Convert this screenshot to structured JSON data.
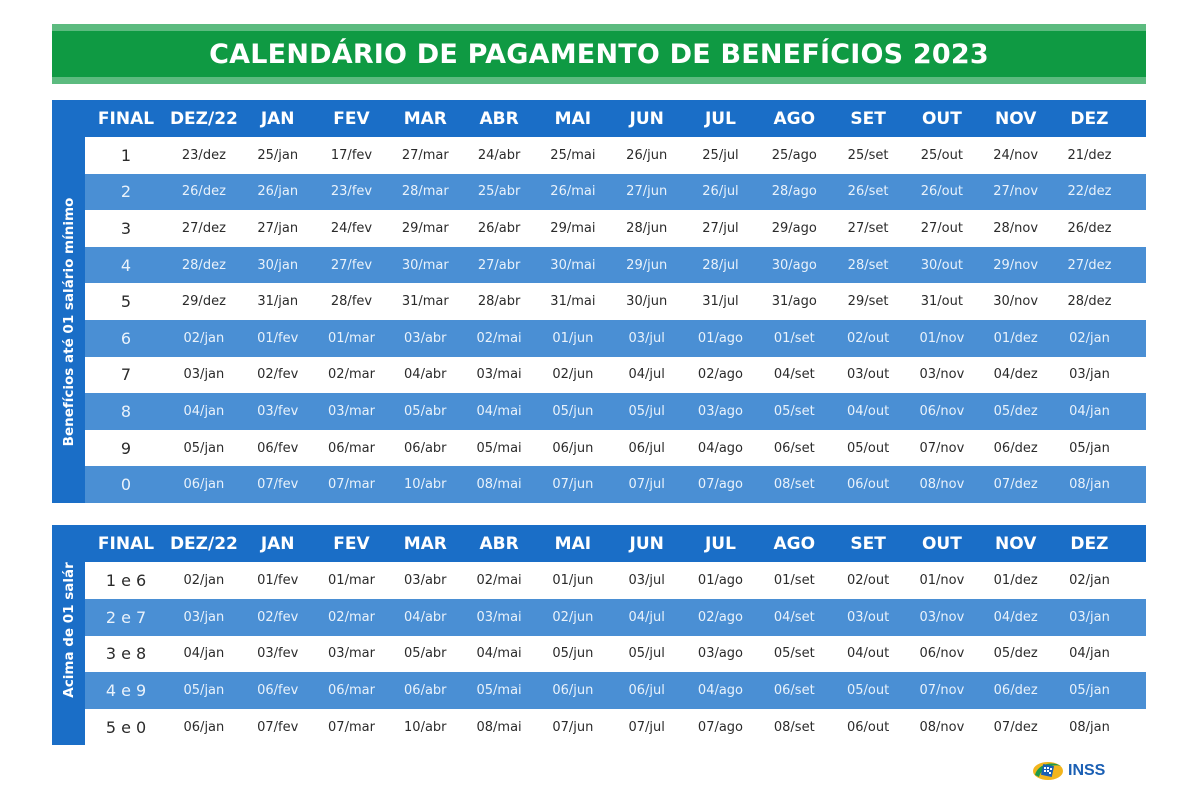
{
  "title": "CALENDÁRIO DE PAGAMENTO DE BENEFÍCIOS 2023",
  "colors": {
    "title_green": "#0f9a43",
    "title_stripe": "#5cbb7f",
    "header_blue": "#1a6ec7",
    "row_blue": "#4a8fd4",
    "row_white": "#ffffff",
    "logo_blue": "#1a5fb4"
  },
  "columns": [
    "FINAL",
    "DEZ/22",
    "JAN",
    "FEV",
    "MAR",
    "ABR",
    "MAI",
    "JUN",
    "JUL",
    "AGO",
    "SET",
    "OUT",
    "NOV",
    "DEZ"
  ],
  "table1": {
    "side_label": "Benefícios até 01 salário mínimo",
    "rows": [
      {
        "final": "1",
        "dates": [
          "23/dez",
          "25/jan",
          "17/fev",
          "27/mar",
          "24/abr",
          "25/mai",
          "26/jun",
          "25/jul",
          "25/ago",
          "25/set",
          "25/out",
          "24/nov",
          "21/dez"
        ]
      },
      {
        "final": "2",
        "dates": [
          "26/dez",
          "26/jan",
          "23/fev",
          "28/mar",
          "25/abr",
          "26/mai",
          "27/jun",
          "26/jul",
          "28/ago",
          "26/set",
          "26/out",
          "27/nov",
          "22/dez"
        ]
      },
      {
        "final": "3",
        "dates": [
          "27/dez",
          "27/jan",
          "24/fev",
          "29/mar",
          "26/abr",
          "29/mai",
          "28/jun",
          "27/jul",
          "29/ago",
          "27/set",
          "27/out",
          "28/nov",
          "26/dez"
        ]
      },
      {
        "final": "4",
        "dates": [
          "28/dez",
          "30/jan",
          "27/fev",
          "30/mar",
          "27/abr",
          "30/mai",
          "29/jun",
          "28/jul",
          "30/ago",
          "28/set",
          "30/out",
          "29/nov",
          "27/dez"
        ]
      },
      {
        "final": "5",
        "dates": [
          "29/dez",
          "31/jan",
          "28/fev",
          "31/mar",
          "28/abr",
          "31/mai",
          "30/jun",
          "31/jul",
          "31/ago",
          "29/set",
          "31/out",
          "30/nov",
          "28/dez"
        ]
      },
      {
        "final": "6",
        "dates": [
          "02/jan",
          "01/fev",
          "01/mar",
          "03/abr",
          "02/mai",
          "01/jun",
          "03/jul",
          "01/ago",
          "01/set",
          "02/out",
          "01/nov",
          "01/dez",
          "02/jan"
        ]
      },
      {
        "final": "7",
        "dates": [
          "03/jan",
          "02/fev",
          "02/mar",
          "04/abr",
          "03/mai",
          "02/jun",
          "04/jul",
          "02/ago",
          "04/set",
          "03/out",
          "03/nov",
          "04/dez",
          "03/jan"
        ]
      },
      {
        "final": "8",
        "dates": [
          "04/jan",
          "03/fev",
          "03/mar",
          "05/abr",
          "04/mai",
          "05/jun",
          "05/jul",
          "03/ago",
          "05/set",
          "04/out",
          "06/nov",
          "05/dez",
          "04/jan"
        ]
      },
      {
        "final": "9",
        "dates": [
          "05/jan",
          "06/fev",
          "06/mar",
          "06/abr",
          "05/mai",
          "06/jun",
          "06/jul",
          "04/ago",
          "06/set",
          "05/out",
          "07/nov",
          "06/dez",
          "05/jan"
        ]
      },
      {
        "final": "0",
        "dates": [
          "06/jan",
          "07/fev",
          "07/mar",
          "10/abr",
          "08/mai",
          "07/jun",
          "07/jul",
          "07/ago",
          "08/set",
          "06/out",
          "08/nov",
          "07/dez",
          "08/jan"
        ]
      }
    ]
  },
  "table2": {
    "side_label": "Acima de 01 salário",
    "rows": [
      {
        "final": "1 e 6",
        "dates": [
          "02/jan",
          "01/fev",
          "01/mar",
          "03/abr",
          "02/mai",
          "01/jun",
          "03/jul",
          "01/ago",
          "01/set",
          "02/out",
          "01/nov",
          "01/dez",
          "02/jan"
        ]
      },
      {
        "final": "2 e 7",
        "dates": [
          "03/jan",
          "02/fev",
          "02/mar",
          "04/abr",
          "03/mai",
          "02/jun",
          "04/jul",
          "02/ago",
          "04/set",
          "03/out",
          "03/nov",
          "04/dez",
          "03/jan"
        ]
      },
      {
        "final": "3 e 8",
        "dates": [
          "04/jan",
          "03/fev",
          "03/mar",
          "05/abr",
          "04/mai",
          "05/jun",
          "05/jul",
          "03/ago",
          "05/set",
          "04/out",
          "06/nov",
          "05/dez",
          "04/jan"
        ]
      },
      {
        "final": "4 e 9",
        "dates": [
          "05/jan",
          "06/fev",
          "06/mar",
          "06/abr",
          "05/mai",
          "06/jun",
          "06/jul",
          "04/ago",
          "06/set",
          "05/out",
          "07/nov",
          "06/dez",
          "05/jan"
        ]
      },
      {
        "final": "5 e 0",
        "dates": [
          "06/jan",
          "07/fev",
          "07/mar",
          "10/abr",
          "08/mai",
          "07/jun",
          "07/jul",
          "07/ago",
          "08/set",
          "06/out",
          "08/nov",
          "07/dez",
          "08/jan"
        ]
      }
    ]
  },
  "logo": {
    "icon": "inss-logo-icon",
    "text": "INSS"
  }
}
